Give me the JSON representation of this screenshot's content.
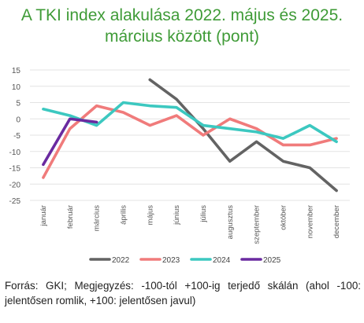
{
  "title_line1": "A TKI index alakulása 2022. május és 2025.",
  "title_line2": "március között (pont)",
  "caption": "Forrás: GKI; Megjegyzés: -100-tól +100-ig terjedő skálán (ahol -100: jelentősen romlik, +100: jelentősen javul)",
  "chart_data": {
    "type": "line",
    "categories": [
      "január",
      "február",
      "március",
      "április",
      "május",
      "június",
      "július",
      "augusztus",
      "szeptember",
      "október",
      "november",
      "december"
    ],
    "ylim": [
      -25,
      15
    ],
    "yticks": [
      15,
      10,
      5,
      0,
      -5,
      -10,
      -15,
      -20,
      -25
    ],
    "grid": true,
    "legend_position": "bottom",
    "series": [
      {
        "name": "2022",
        "color": "#636363",
        "values": [
          null,
          null,
          null,
          null,
          12,
          6,
          -3,
          -13,
          -7,
          -13,
          -15,
          -22
        ]
      },
      {
        "name": "2023",
        "color": "#f07b7b",
        "values": [
          -18,
          -3,
          4,
          2,
          -2,
          1,
          -5,
          0,
          -3,
          -8,
          -8,
          -6
        ]
      },
      {
        "name": "2024",
        "color": "#3cc8c0",
        "values": [
          3,
          1,
          -2,
          5,
          4,
          3.5,
          -2,
          -3,
          -4,
          -6,
          -2,
          -7
        ]
      },
      {
        "name": "2025",
        "color": "#6a2aa0",
        "values": [
          -14,
          0,
          -1,
          null,
          null,
          null,
          null,
          null,
          null,
          null,
          null,
          null
        ]
      }
    ]
  }
}
